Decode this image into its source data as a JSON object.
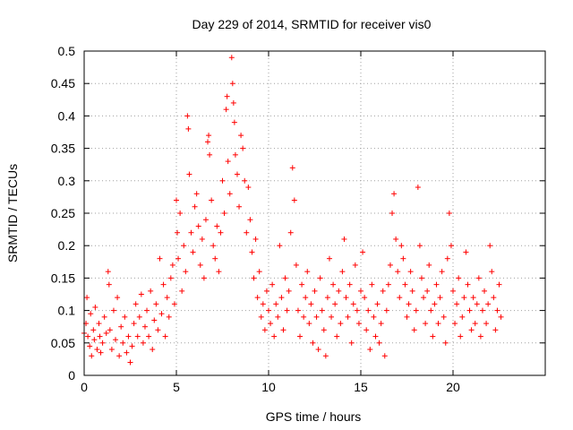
{
  "chart_data": {
    "type": "scatter",
    "title": "Day 229 of 2014, SRMTID for receiver vis0",
    "xlabel": "GPS time / hours",
    "ylabel": "SRMTID / TECUs",
    "xlim": [
      0,
      25
    ],
    "ylim": [
      0,
      0.5
    ],
    "x_ticks": [
      0,
      5,
      10,
      15,
      20
    ],
    "x_tick_labels": [
      "0",
      "5",
      "10",
      "15",
      "20"
    ],
    "y_ticks": [
      0,
      0.05,
      0.1,
      0.15,
      0.2,
      0.25,
      0.3,
      0.35,
      0.4,
      0.45,
      0.5
    ],
    "y_tick_labels": [
      "0",
      "0.05",
      "0.1",
      "0.15",
      "0.2",
      "0.25",
      "0.3",
      "0.35",
      "0.4",
      "0.45",
      "0.5"
    ],
    "grid": true,
    "marker": "plus",
    "color": "#ff0000",
    "series": [
      {
        "name": "SRMTID",
        "points": [
          [
            0.0,
            0.065
          ],
          [
            0.1,
            0.08
          ],
          [
            0.15,
            0.12
          ],
          [
            0.2,
            0.06
          ],
          [
            0.3,
            0.045
          ],
          [
            0.35,
            0.095
          ],
          [
            0.4,
            0.03
          ],
          [
            0.5,
            0.07
          ],
          [
            0.55,
            0.055
          ],
          [
            0.6,
            0.105
          ],
          [
            0.7,
            0.04
          ],
          [
            0.8,
            0.08
          ],
          [
            0.85,
            0.06
          ],
          [
            0.9,
            0.035
          ],
          [
            1.0,
            0.05
          ],
          [
            1.1,
            0.09
          ],
          [
            1.2,
            0.065
          ],
          [
            1.3,
            0.16
          ],
          [
            1.35,
            0.14
          ],
          [
            1.4,
            0.07
          ],
          [
            1.5,
            0.04
          ],
          [
            1.6,
            0.1
          ],
          [
            1.7,
            0.055
          ],
          [
            1.8,
            0.12
          ],
          [
            1.9,
            0.03
          ],
          [
            2.0,
            0.075
          ],
          [
            2.1,
            0.05
          ],
          [
            2.2,
            0.09
          ],
          [
            2.3,
            0.035
          ],
          [
            2.4,
            0.06
          ],
          [
            2.5,
            0.02
          ],
          [
            2.6,
            0.045
          ],
          [
            2.7,
            0.08
          ],
          [
            2.8,
            0.11
          ],
          [
            2.9,
            0.06
          ],
          [
            3.0,
            0.09
          ],
          [
            3.1,
            0.125
          ],
          [
            3.2,
            0.05
          ],
          [
            3.3,
            0.075
          ],
          [
            3.4,
            0.1
          ],
          [
            3.5,
            0.06
          ],
          [
            3.6,
            0.13
          ],
          [
            3.7,
            0.04
          ],
          [
            3.8,
            0.085
          ],
          [
            3.9,
            0.11
          ],
          [
            4.0,
            0.07
          ],
          [
            4.1,
            0.18
          ],
          [
            4.2,
            0.095
          ],
          [
            4.3,
            0.14
          ],
          [
            4.4,
            0.06
          ],
          [
            4.5,
            0.12
          ],
          [
            4.6,
            0.09
          ],
          [
            4.7,
            0.15
          ],
          [
            4.8,
            0.17
          ],
          [
            4.9,
            0.11
          ],
          [
            5.0,
            0.27
          ],
          [
            5.05,
            0.22
          ],
          [
            5.1,
            0.18
          ],
          [
            5.2,
            0.25
          ],
          [
            5.3,
            0.13
          ],
          [
            5.4,
            0.2
          ],
          [
            5.5,
            0.16
          ],
          [
            5.6,
            0.4
          ],
          [
            5.65,
            0.38
          ],
          [
            5.7,
            0.31
          ],
          [
            5.8,
            0.22
          ],
          [
            5.9,
            0.19
          ],
          [
            6.0,
            0.26
          ],
          [
            6.1,
            0.28
          ],
          [
            6.2,
            0.23
          ],
          [
            6.3,
            0.17
          ],
          [
            6.4,
            0.21
          ],
          [
            6.5,
            0.15
          ],
          [
            6.6,
            0.24
          ],
          [
            6.7,
            0.36
          ],
          [
            6.75,
            0.37
          ],
          [
            6.8,
            0.34
          ],
          [
            6.9,
            0.27
          ],
          [
            7.0,
            0.2
          ],
          [
            7.1,
            0.18
          ],
          [
            7.2,
            0.23
          ],
          [
            7.3,
            0.16
          ],
          [
            7.4,
            0.22
          ],
          [
            7.5,
            0.3
          ],
          [
            7.6,
            0.25
          ],
          [
            7.7,
            0.41
          ],
          [
            7.75,
            0.43
          ],
          [
            7.8,
            0.33
          ],
          [
            7.9,
            0.28
          ],
          [
            8.0,
            0.49
          ],
          [
            8.05,
            0.45
          ],
          [
            8.1,
            0.42
          ],
          [
            8.15,
            0.39
          ],
          [
            8.2,
            0.34
          ],
          [
            8.3,
            0.31
          ],
          [
            8.4,
            0.26
          ],
          [
            8.5,
            0.37
          ],
          [
            8.6,
            0.35
          ],
          [
            8.7,
            0.3
          ],
          [
            8.8,
            0.22
          ],
          [
            8.9,
            0.29
          ],
          [
            9.0,
            0.24
          ],
          [
            9.1,
            0.19
          ],
          [
            9.2,
            0.15
          ],
          [
            9.3,
            0.21
          ],
          [
            9.4,
            0.12
          ],
          [
            9.5,
            0.16
          ],
          [
            9.6,
            0.09
          ],
          [
            9.7,
            0.11
          ],
          [
            9.8,
            0.07
          ],
          [
            9.9,
            0.13
          ],
          [
            10.0,
            0.1
          ],
          [
            10.1,
            0.08
          ],
          [
            10.2,
            0.14
          ],
          [
            10.3,
            0.06
          ],
          [
            10.4,
            0.11
          ],
          [
            10.5,
            0.09
          ],
          [
            10.6,
            0.2
          ],
          [
            10.7,
            0.12
          ],
          [
            10.8,
            0.07
          ],
          [
            10.9,
            0.15
          ],
          [
            11.0,
            0.1
          ],
          [
            11.1,
            0.13
          ],
          [
            11.2,
            0.22
          ],
          [
            11.3,
            0.32
          ],
          [
            11.4,
            0.27
          ],
          [
            11.5,
            0.17
          ],
          [
            11.6,
            0.1
          ],
          [
            11.7,
            0.06
          ],
          [
            11.8,
            0.14
          ],
          [
            11.9,
            0.09
          ],
          [
            12.0,
            0.12
          ],
          [
            12.1,
            0.16
          ],
          [
            12.2,
            0.08
          ],
          [
            12.3,
            0.11
          ],
          [
            12.4,
            0.05
          ],
          [
            12.5,
            0.13
          ],
          [
            12.6,
            0.09
          ],
          [
            12.7,
            0.04
          ],
          [
            12.8,
            0.15
          ],
          [
            12.9,
            0.1
          ],
          [
            13.0,
            0.07
          ],
          [
            13.1,
            0.03
          ],
          [
            13.2,
            0.12
          ],
          [
            13.3,
            0.18
          ],
          [
            13.4,
            0.09
          ],
          [
            13.5,
            0.14
          ],
          [
            13.6,
            0.11
          ],
          [
            13.7,
            0.06
          ],
          [
            13.8,
            0.13
          ],
          [
            13.9,
            0.08
          ],
          [
            14.0,
            0.16
          ],
          [
            14.1,
            0.21
          ],
          [
            14.2,
            0.12
          ],
          [
            14.3,
            0.09
          ],
          [
            14.4,
            0.14
          ],
          [
            14.5,
            0.05
          ],
          [
            14.6,
            0.11
          ],
          [
            14.7,
            0.17
          ],
          [
            14.8,
            0.1
          ],
          [
            14.9,
            0.08
          ],
          [
            15.0,
            0.13
          ],
          [
            15.1,
            0.19
          ],
          [
            15.2,
            0.12
          ],
          [
            15.3,
            0.07
          ],
          [
            15.4,
            0.1
          ],
          [
            15.5,
            0.04
          ],
          [
            15.6,
            0.14
          ],
          [
            15.7,
            0.09
          ],
          [
            15.8,
            0.06
          ],
          [
            15.9,
            0.11
          ],
          [
            16.0,
            0.05
          ],
          [
            16.1,
            0.08
          ],
          [
            16.2,
            0.13
          ],
          [
            16.3,
            0.03
          ],
          [
            16.4,
            0.1
          ],
          [
            16.5,
            0.14
          ],
          [
            16.6,
            0.17
          ],
          [
            16.7,
            0.25
          ],
          [
            16.8,
            0.28
          ],
          [
            16.9,
            0.21
          ],
          [
            17.0,
            0.16
          ],
          [
            17.1,
            0.12
          ],
          [
            17.2,
            0.2
          ],
          [
            17.3,
            0.18
          ],
          [
            17.4,
            0.14
          ],
          [
            17.5,
            0.09
          ],
          [
            17.6,
            0.11
          ],
          [
            17.7,
            0.16
          ],
          [
            17.8,
            0.13
          ],
          [
            17.9,
            0.07
          ],
          [
            18.0,
            0.1
          ],
          [
            18.1,
            0.29
          ],
          [
            18.2,
            0.2
          ],
          [
            18.3,
            0.15
          ],
          [
            18.4,
            0.12
          ],
          [
            18.5,
            0.08
          ],
          [
            18.6,
            0.13
          ],
          [
            18.7,
            0.17
          ],
          [
            18.8,
            0.1
          ],
          [
            18.9,
            0.06
          ],
          [
            19.0,
            0.11
          ],
          [
            19.1,
            0.14
          ],
          [
            19.2,
            0.08
          ],
          [
            19.3,
            0.12
          ],
          [
            19.4,
            0.16
          ],
          [
            19.5,
            0.09
          ],
          [
            19.6,
            0.05
          ],
          [
            19.7,
            0.18
          ],
          [
            19.8,
            0.25
          ],
          [
            19.9,
            0.2
          ],
          [
            20.0,
            0.13
          ],
          [
            20.1,
            0.08
          ],
          [
            20.2,
            0.11
          ],
          [
            20.3,
            0.15
          ],
          [
            20.4,
            0.06
          ],
          [
            20.5,
            0.09
          ],
          [
            20.6,
            0.12
          ],
          [
            20.7,
            0.19
          ],
          [
            20.8,
            0.14
          ],
          [
            20.9,
            0.1
          ],
          [
            21.0,
            0.07
          ],
          [
            21.1,
            0.12
          ],
          [
            21.2,
            0.08
          ],
          [
            21.3,
            0.11
          ],
          [
            21.4,
            0.15
          ],
          [
            21.5,
            0.06
          ],
          [
            21.6,
            0.1
          ],
          [
            21.7,
            0.13
          ],
          [
            21.8,
            0.08
          ],
          [
            21.9,
            0.11
          ],
          [
            22.0,
            0.2
          ],
          [
            22.1,
            0.16
          ],
          [
            22.2,
            0.12
          ],
          [
            22.3,
            0.07
          ],
          [
            22.4,
            0.1
          ],
          [
            22.5,
            0.14
          ],
          [
            22.6,
            0.09
          ]
        ]
      }
    ]
  }
}
